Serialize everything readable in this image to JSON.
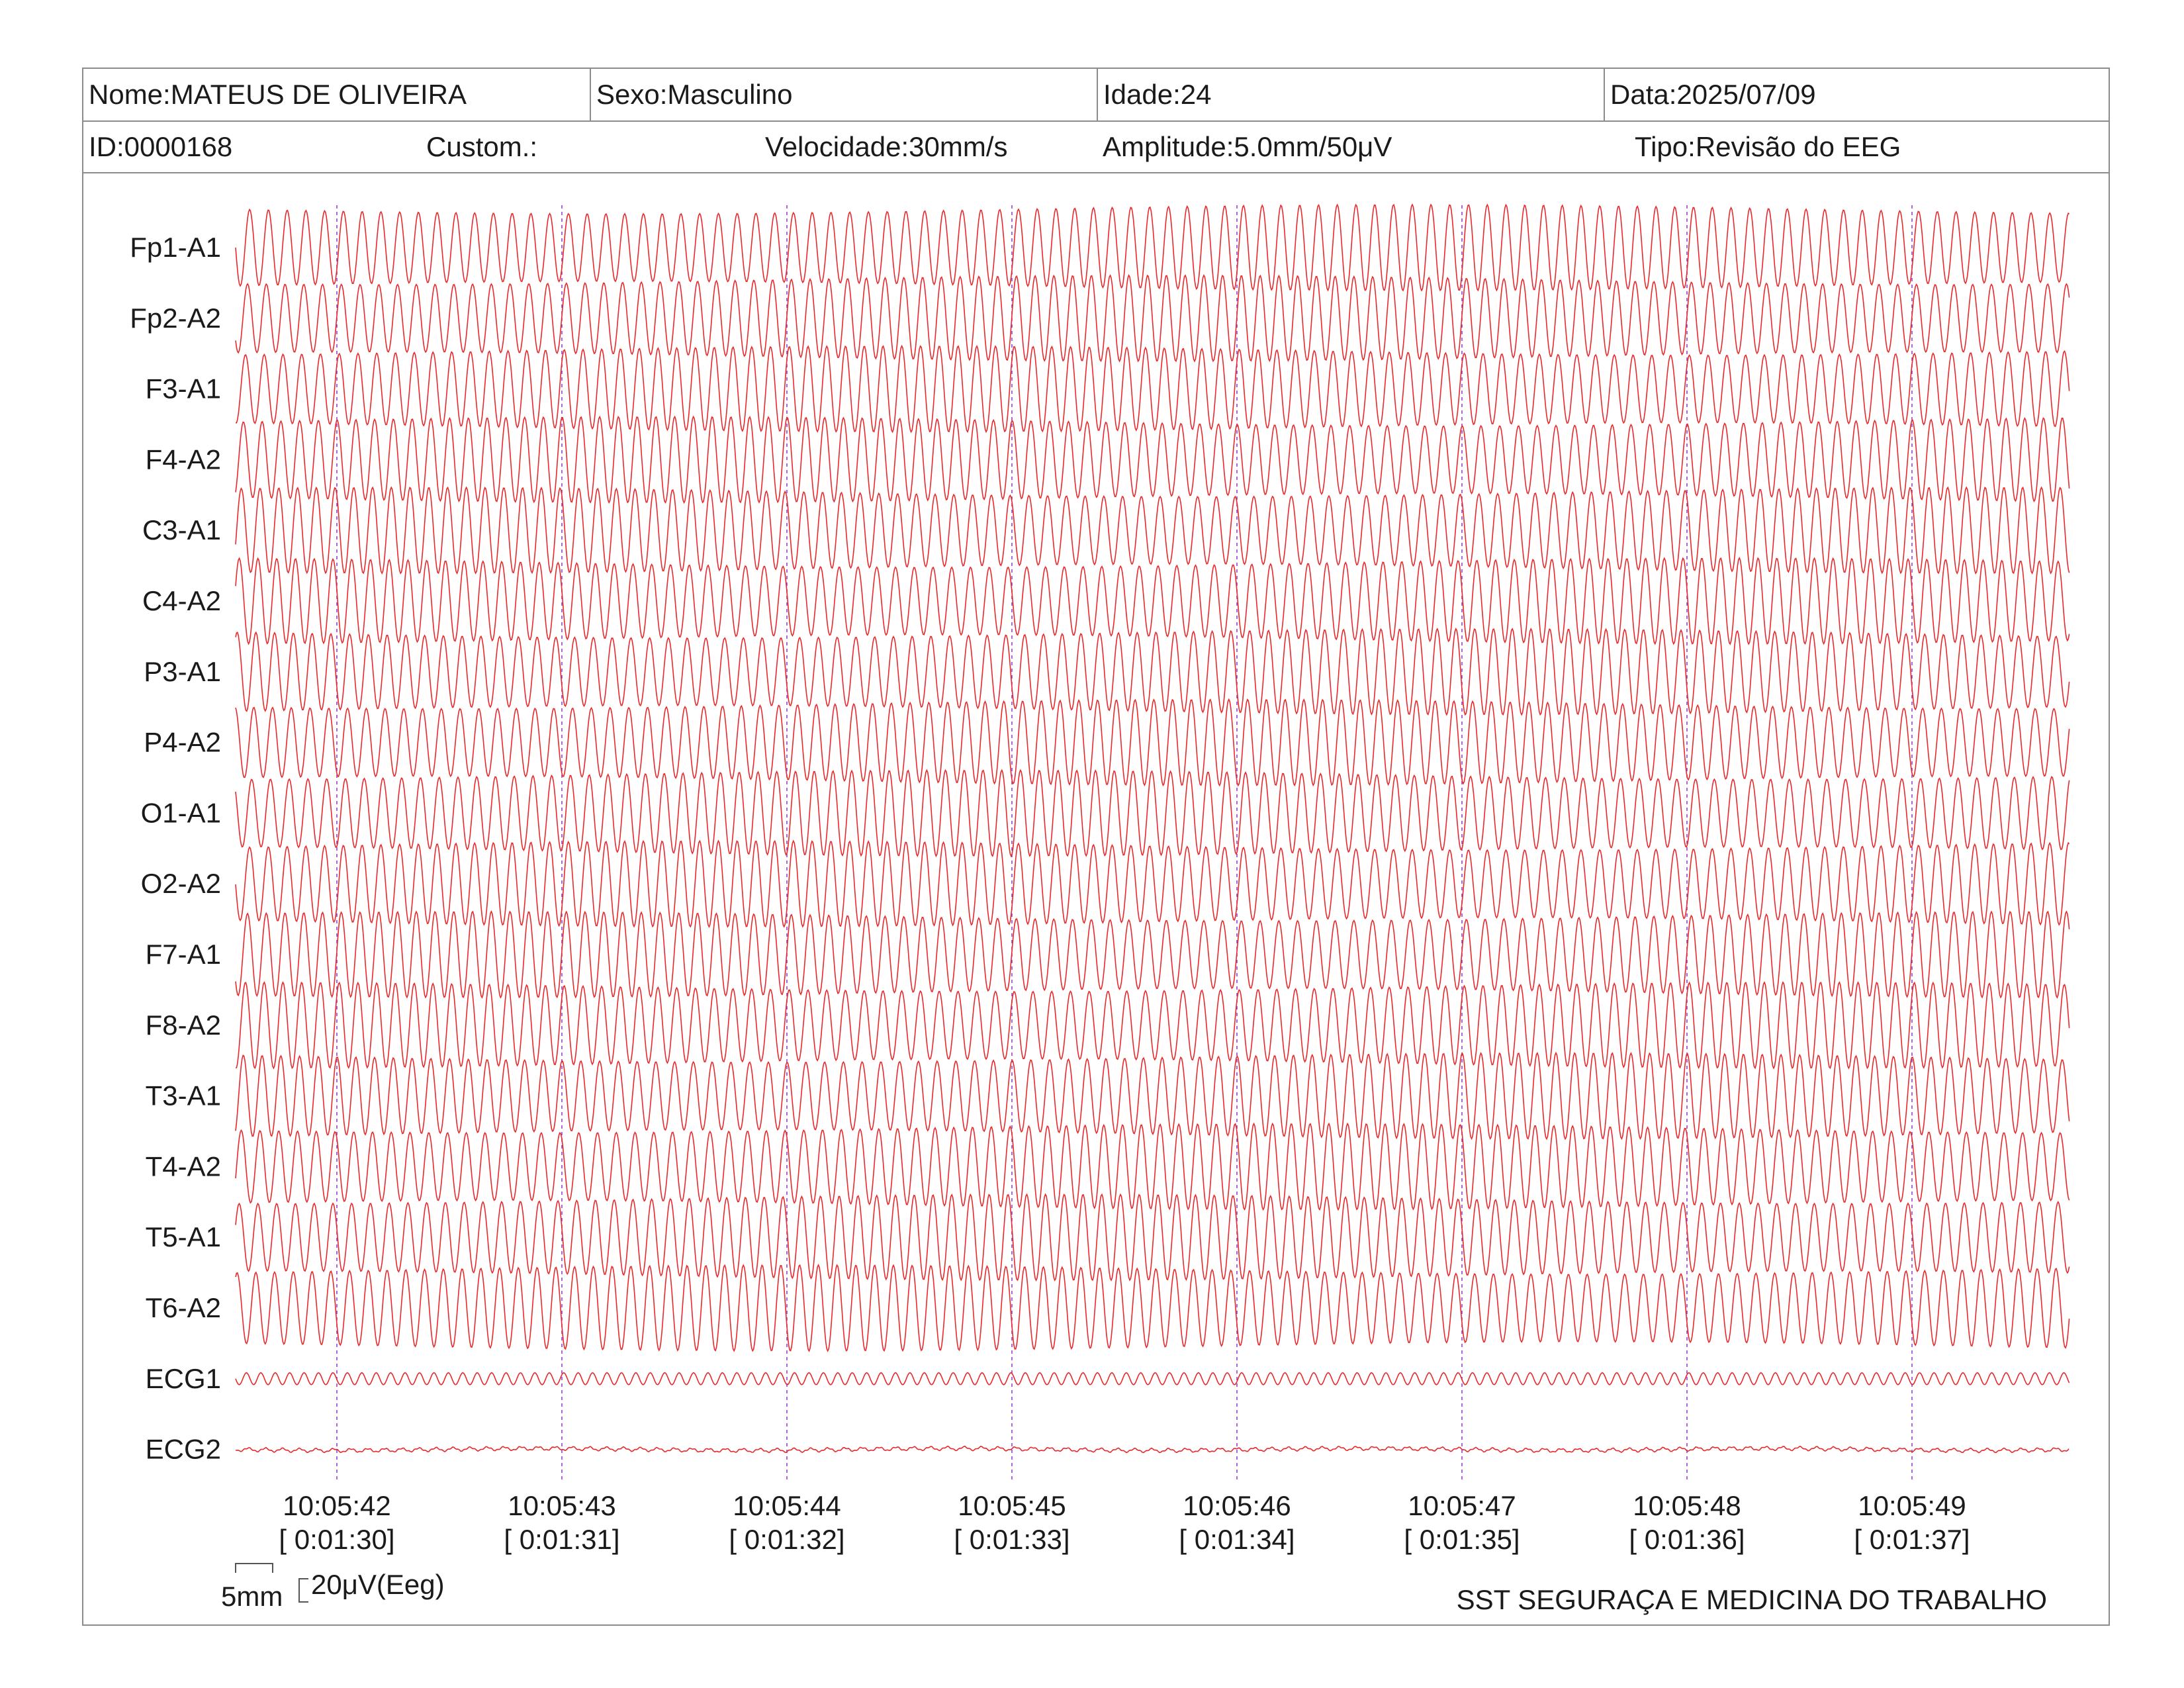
{
  "header": {
    "name": "Nome:MATEUS DE OLIVEIRA",
    "sex": "Sexo:Masculino",
    "age": "Idade:24",
    "date": "Data:2025/07/09",
    "id": "ID:0000168",
    "custom": "Custom.:",
    "speed": "Velocidade:30mm/s",
    "amplitude": "Amplitude:5.0mm/50μV",
    "type": "Tipo:Revisão do EEG"
  },
  "footer": {
    "scale_time": "5mm",
    "scale_amp": "20μV(Eeg)",
    "company": "SST SEGURAÇA E MEDICINA DO TRABALHO"
  },
  "colors": {
    "trace": "#e8292c",
    "marker": "#9b3fd1",
    "border": "#8c8c8c"
  },
  "chart_data": {
    "type": "line",
    "title": "",
    "xlabel": "",
    "ylabel": "",
    "channels": [
      {
        "name": "Fp1-A1",
        "kind": "eeg"
      },
      {
        "name": "Fp2-A2",
        "kind": "eeg"
      },
      {
        "name": "F3-A1",
        "kind": "eeg"
      },
      {
        "name": "F4-A2",
        "kind": "eeg"
      },
      {
        "name": "C3-A1",
        "kind": "eeg"
      },
      {
        "name": "C4-A2",
        "kind": "eeg"
      },
      {
        "name": "P3-A1",
        "kind": "eeg"
      },
      {
        "name": "P4-A2",
        "kind": "eeg"
      },
      {
        "name": "O1-A1",
        "kind": "eeg"
      },
      {
        "name": "O2-A2",
        "kind": "eeg"
      },
      {
        "name": "F7-A1",
        "kind": "eeg"
      },
      {
        "name": "F8-A2",
        "kind": "eeg"
      },
      {
        "name": "T3-A1",
        "kind": "eeg"
      },
      {
        "name": "T4-A2",
        "kind": "eeg"
      },
      {
        "name": "T5-A1",
        "kind": "eeg"
      },
      {
        "name": "T6-A2",
        "kind": "eeg"
      },
      {
        "name": "ECG1",
        "kind": "ecg"
      },
      {
        "name": "ECG2",
        "kind": "ecg-flat"
      }
    ],
    "time_ticks": [
      {
        "clock": "10:05:42",
        "elapsed": "[ 0:01:30]"
      },
      {
        "clock": "10:05:43",
        "elapsed": "[ 0:01:31]"
      },
      {
        "clock": "10:05:44",
        "elapsed": "[ 0:01:32]"
      },
      {
        "clock": "10:05:45",
        "elapsed": "[ 0:01:33]"
      },
      {
        "clock": "10:05:46",
        "elapsed": "[ 0:01:34]"
      },
      {
        "clock": "10:05:47",
        "elapsed": "[ 0:01:35]"
      },
      {
        "clock": "10:05:48",
        "elapsed": "[ 0:01:36]"
      },
      {
        "clock": "10:05:49",
        "elapsed": "[ 0:01:37]"
      }
    ],
    "x_range_seconds": [
      90.55,
      98.7
    ],
    "eeg_cycles_per_second": 12,
    "ecg_cycles_per_second": 6,
    "grid": false,
    "legend": "none"
  }
}
